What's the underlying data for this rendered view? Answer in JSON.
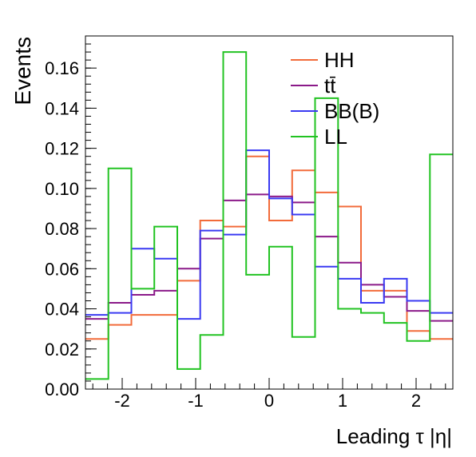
{
  "chart_data": {
    "type": "histogram",
    "xlabel": "Leading τ |η|",
    "ylabel": "Events",
    "xlim": [
      -2.5,
      2.5
    ],
    "ylim": [
      0,
      0.176
    ],
    "x_ticks": [
      -2,
      -1,
      0,
      1,
      2
    ],
    "x_tick_labels": [
      "-2",
      "-1",
      "0",
      "1",
      "2"
    ],
    "y_ticks": [
      0,
      0.02,
      0.04,
      0.06,
      0.08,
      0.1,
      0.12,
      0.14,
      0.16
    ],
    "y_tick_labels": [
      "0.00",
      "0.02",
      "0.04",
      "0.06",
      "0.08",
      "0.10",
      "0.12",
      "0.14",
      "0.16"
    ],
    "legend_position": "top-right",
    "grid": false,
    "bin_edges": [
      -2.5,
      -2.188,
      -1.875,
      -1.563,
      -1.25,
      -0.938,
      -0.625,
      -0.313,
      0,
      0.313,
      0.625,
      0.938,
      1.25,
      1.563,
      1.875,
      2.188,
      2.5
    ],
    "series": [
      {
        "name": "HH",
        "color": "#f26b3a",
        "values": [
          0.025,
          0.032,
          0.037,
          0.037,
          0.054,
          0.084,
          0.081,
          0.116,
          0.084,
          0.109,
          0.098,
          0.091,
          0.049,
          0.049,
          0.029,
          0.025
        ]
      },
      {
        "name": "tt̄",
        "color": "#8b1a89",
        "values": [
          0.035,
          0.043,
          0.047,
          0.049,
          0.06,
          0.075,
          0.094,
          0.097,
          0.096,
          0.093,
          0.076,
          0.063,
          0.052,
          0.046,
          0.039,
          0.034
        ]
      },
      {
        "name": "BB(B)",
        "color": "#3a3af2",
        "values": [
          0.037,
          0.038,
          0.07,
          0.065,
          0.035,
          0.079,
          0.077,
          0.119,
          0.095,
          0.087,
          0.061,
          0.055,
          0.043,
          0.055,
          0.044,
          0.038
        ]
      },
      {
        "name": "LL",
        "color": "#22c322",
        "values": [
          0.005,
          0.11,
          0.05,
          0.081,
          0.01,
          0.027,
          0.168,
          0.057,
          0.071,
          0.026,
          0.145,
          0.04,
          0.038,
          0.033,
          0.024,
          0.117
        ]
      }
    ]
  }
}
